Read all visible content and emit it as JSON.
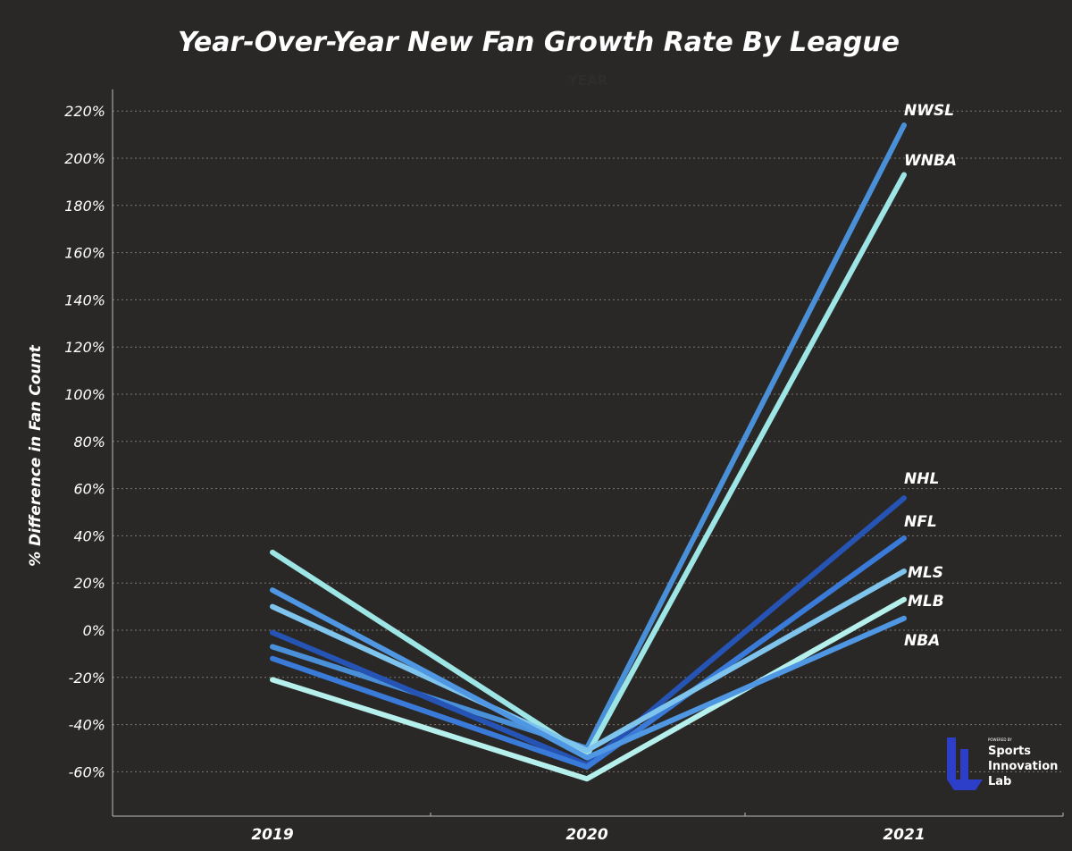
{
  "chart_data": {
    "type": "line",
    "title": "Year-Over-Year New Fan Growth Rate By League",
    "subtitle": "YEAR",
    "xlabel": "",
    "ylabel": "% Difference in Fan Count",
    "x": [
      "2019",
      "2020",
      "2021"
    ],
    "ylim": [
      -80,
      230
    ],
    "yticks": [
      "220%",
      "200%",
      "180%",
      "160%",
      "140%",
      "120%",
      "100%",
      "80%",
      "60%",
      "40%",
      "20%",
      "0%",
      "-20%",
      "-40%",
      "-60%"
    ],
    "ytick_values": [
      220,
      200,
      180,
      160,
      140,
      120,
      100,
      80,
      60,
      40,
      20,
      0,
      -20,
      -40,
      -60
    ],
    "grid": true,
    "series": [
      {
        "name": "NWSL",
        "values": [
          -7,
          -50,
          214
        ],
        "color": "#4a90d9"
      },
      {
        "name": "WNBA",
        "values": [
          33,
          -53,
          193
        ],
        "color": "#9ee6e6"
      },
      {
        "name": "NHL",
        "values": [
          -1,
          -57,
          56
        ],
        "color": "#2554b5"
      },
      {
        "name": "NFL",
        "values": [
          -12,
          -58,
          39
        ],
        "color": "#3a7ad8"
      },
      {
        "name": "MLS",
        "values": [
          10,
          -51,
          25
        ],
        "color": "#7fc4ec"
      },
      {
        "name": "MLB",
        "values": [
          -21,
          -63,
          13
        ],
        "color": "#b6f0ec"
      },
      {
        "name": "NBA",
        "values": [
          17,
          -54,
          5
        ],
        "color": "#4f97e3"
      }
    ]
  },
  "series_labels": [
    {
      "text": "NWSL"
    },
    {
      "text": "WNBA"
    },
    {
      "text": "NHL"
    },
    {
      "text": "NFL"
    },
    {
      "text": "MLS"
    },
    {
      "text": "MLB"
    },
    {
      "text": "NBA"
    }
  ],
  "logo": {
    "powered_by": "POWERED BY",
    "line1": "Sports",
    "line2": "Innovation",
    "line3": "Lab",
    "color": "#2d3ec9"
  }
}
